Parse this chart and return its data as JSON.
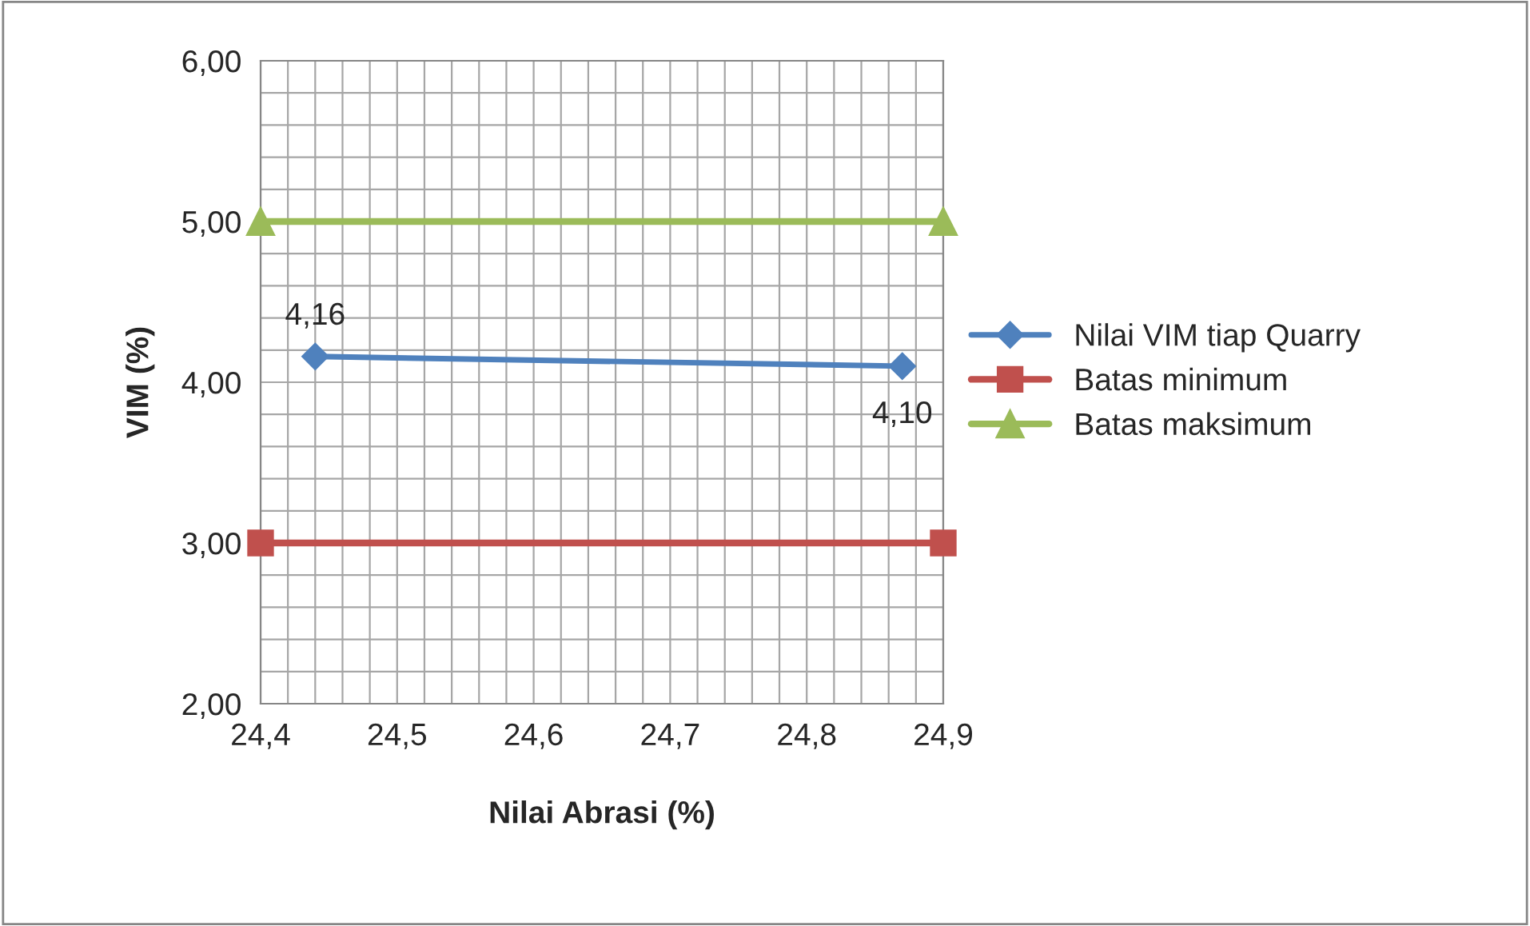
{
  "chart_data": {
    "type": "line",
    "xlabel": "Nilai Abrasi (%)",
    "ylabel": "VIM (%)",
    "xlim": [
      24.4,
      24.9
    ],
    "xticks": [
      {
        "value": 24.4,
        "label": "24,4"
      },
      {
        "value": 24.5,
        "label": "24,5"
      },
      {
        "value": 24.6,
        "label": "24,6"
      },
      {
        "value": 24.7,
        "label": "24,7"
      },
      {
        "value": 24.8,
        "label": "24,8"
      },
      {
        "value": 24.9,
        "label": "24,9"
      }
    ],
    "ylim": [
      2,
      6
    ],
    "yticks": [
      {
        "value": 2,
        "label": "2,00"
      },
      {
        "value": 3,
        "label": "3,00"
      },
      {
        "value": 4,
        "label": "4,00"
      },
      {
        "value": 5,
        "label": "5,00"
      },
      {
        "value": 6,
        "label": "6,00"
      }
    ],
    "grid": true,
    "legend": "right",
    "series": [
      {
        "name": "Nilai VIM tiap Quarry",
        "color": "#4f81bd",
        "marker": "diamond",
        "x": [
          24.44,
          24.87
        ],
        "values": [
          4.16,
          4.1
        ],
        "value_labels": [
          "4,16",
          "4,10"
        ]
      },
      {
        "name": "Batas minimum",
        "color": "#c0504d",
        "marker": "square",
        "x": [
          24.4,
          24.9
        ],
        "values": [
          3,
          3
        ]
      },
      {
        "name": "Batas maksimum",
        "color": "#9bbb59",
        "marker": "triangle",
        "x": [
          24.4,
          24.9
        ],
        "values": [
          5,
          5
        ]
      }
    ]
  }
}
